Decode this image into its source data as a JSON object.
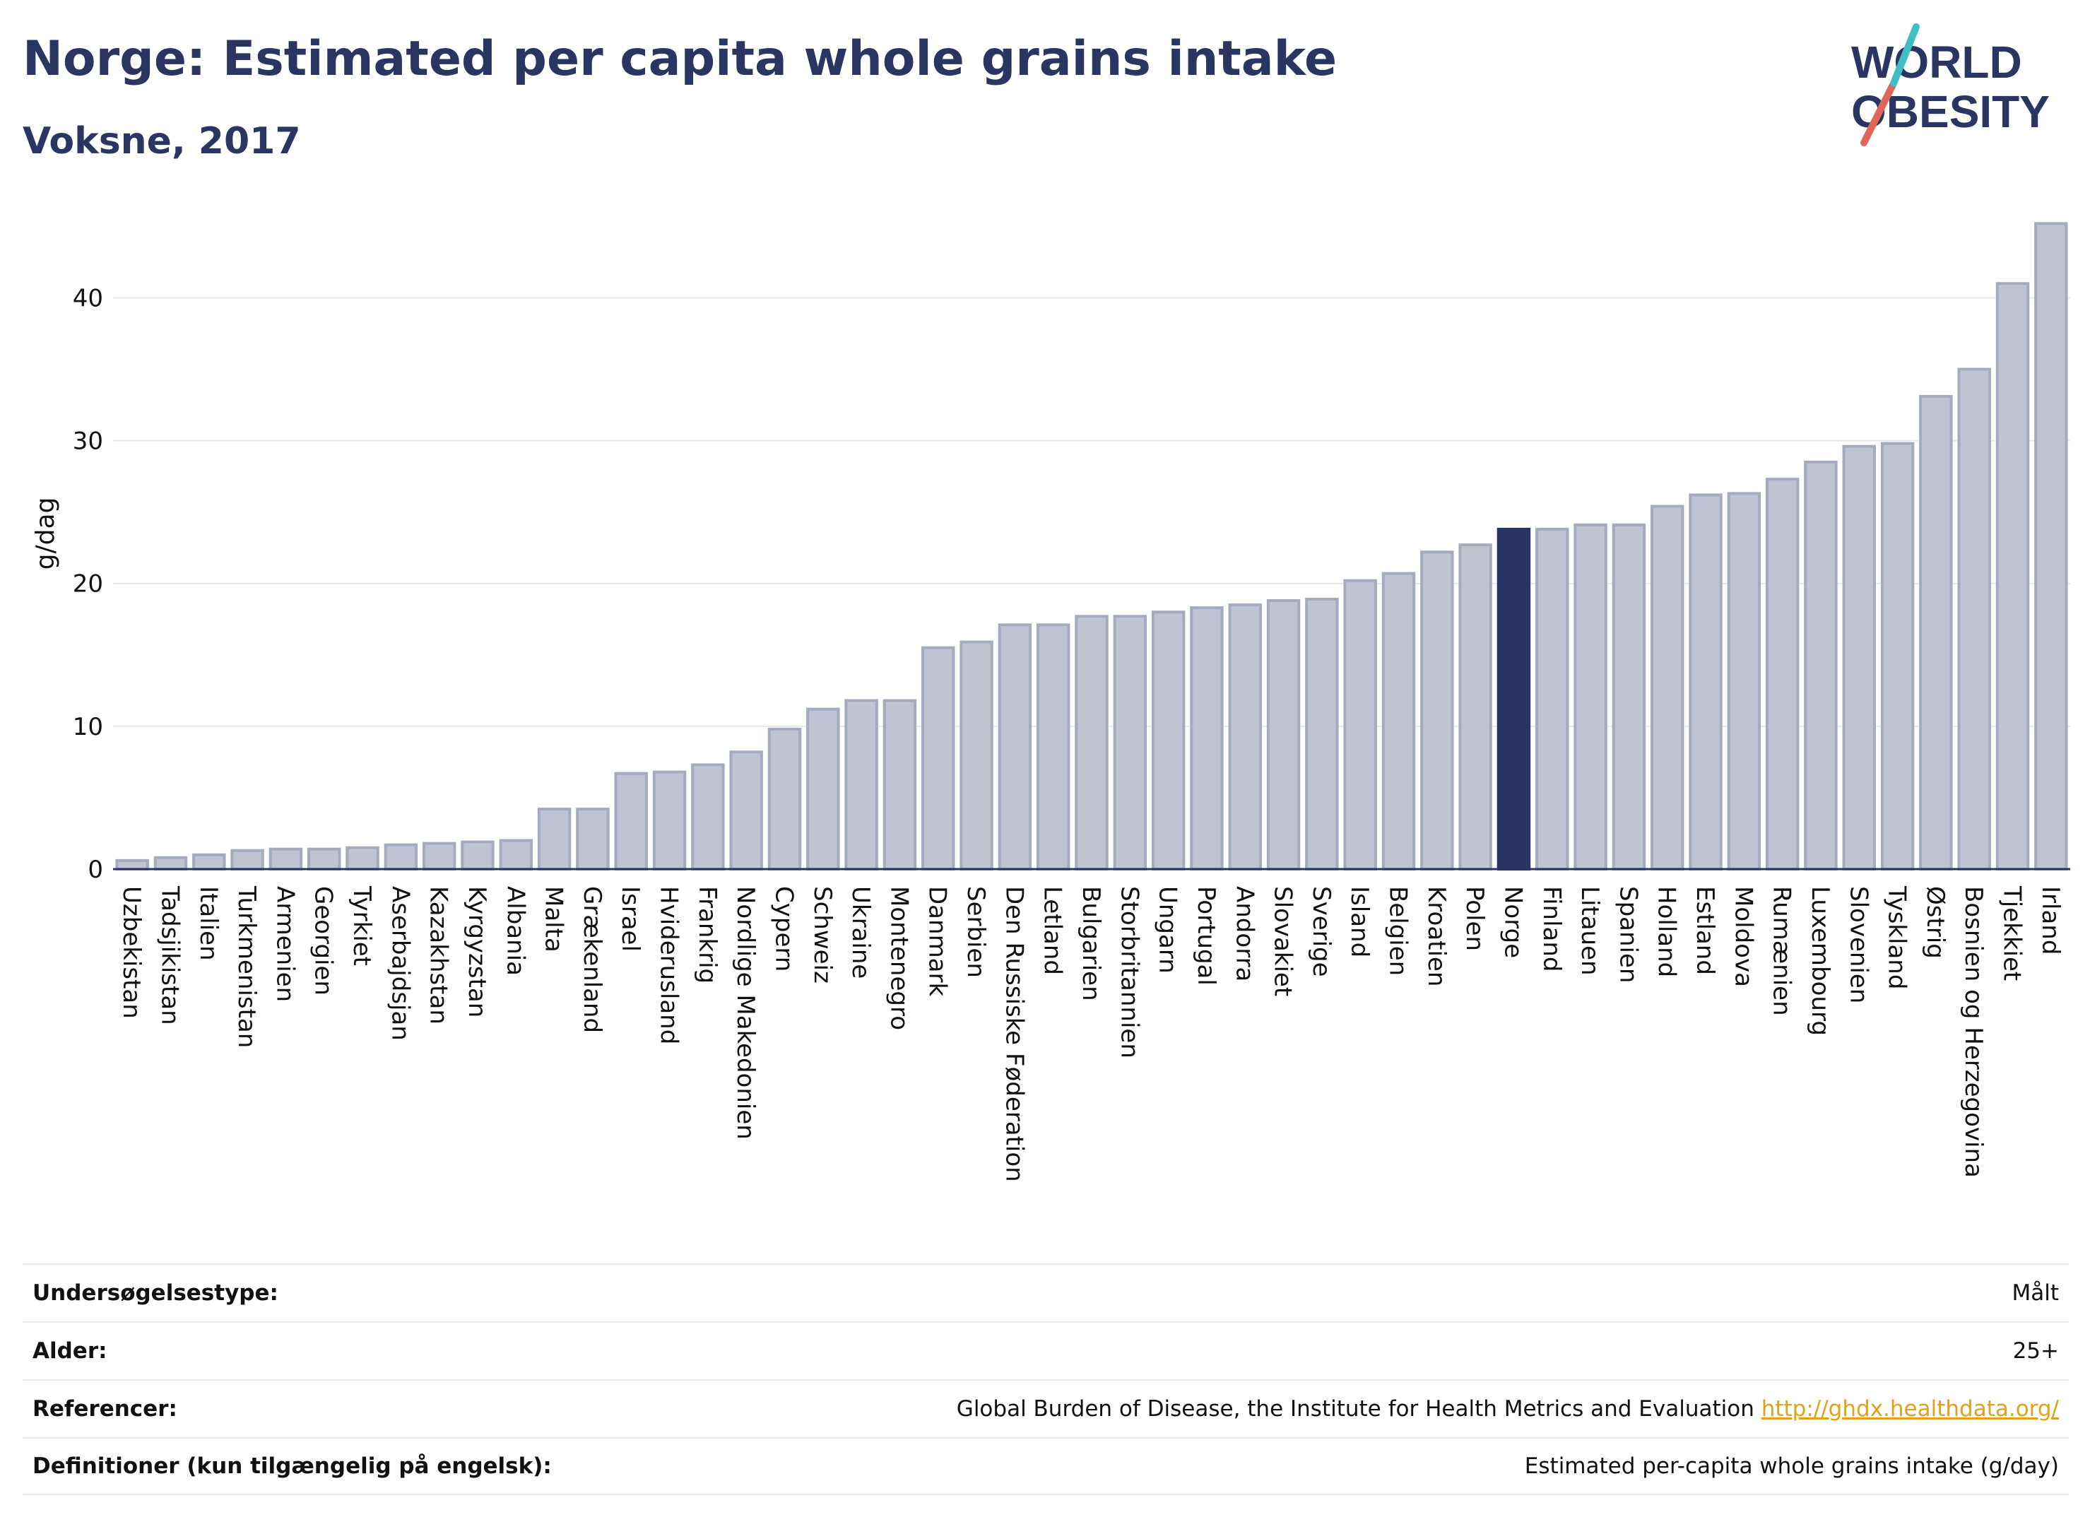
{
  "header": {
    "title": "Norge: Estimated per capita whole grains intake",
    "subtitle": "Voksne, 2017"
  },
  "logo": {
    "line1": "WORLD",
    "line2": "OBESITY",
    "colors": [
      "#2a3562",
      "#e0685a",
      "#3dbfc4"
    ]
  },
  "colors": {
    "bar": "#c0c4d2",
    "bar_border": "#a5abbf",
    "highlight": "#283463",
    "text": "#2a3562",
    "grid": "#e6e9ef",
    "link": "#e0a11b"
  },
  "chart_data": {
    "type": "bar",
    "ylabel": "g/dag",
    "ylim": [
      0,
      47
    ],
    "yticks": [
      0,
      10,
      20,
      30,
      40
    ],
    "grid": true,
    "highlight": "Norge",
    "categories": [
      "Uzbekistan",
      "Tadsjikistan",
      "Italien",
      "Turkmenistan",
      "Armenien",
      "Georgien",
      "Tyrkiet",
      "Aserbajdsjan",
      "Kazakhstan",
      "Kyrgyzstan",
      "Albania",
      "Malta",
      "Grækenland",
      "Israel",
      "Hviderusland",
      "Frankrig",
      "Nordlige Makedonien",
      "Cypern",
      "Schweiz",
      "Ukraine",
      "Montenegro",
      "Danmark",
      "Serbien",
      "Den Russiske Føderation",
      "Letland",
      "Bulgarien",
      "Storbritannien",
      "Ungarn",
      "Portugal",
      "Andorra",
      "Slovakiet",
      "Sverige",
      "Island",
      "Belgien",
      "Kroatien",
      "Polen",
      "Norge",
      "Finland",
      "Litauen",
      "Spanien",
      "Holland",
      "Estland",
      "Moldova",
      "Rumænien",
      "Luxembourg",
      "Slovenien",
      "Tyskland",
      "Østrig",
      "Bosnien og Herzegovina",
      "Tjekkiet",
      "Irland"
    ],
    "values": [
      0.6,
      0.8,
      1.0,
      1.3,
      1.4,
      1.4,
      1.5,
      1.7,
      1.8,
      1.9,
      2.0,
      4.2,
      4.2,
      6.7,
      6.8,
      7.3,
      8.2,
      9.8,
      11.2,
      11.8,
      11.8,
      15.5,
      15.9,
      17.1,
      17.1,
      17.7,
      17.7,
      18.0,
      18.3,
      18.5,
      18.8,
      18.9,
      20.2,
      20.7,
      22.2,
      22.7,
      23.8,
      23.8,
      24.1,
      24.1,
      25.4,
      26.2,
      26.3,
      27.3,
      28.5,
      29.6,
      29.8,
      33.1,
      35.0,
      41.0,
      45.2
    ]
  },
  "meta": {
    "rows": [
      {
        "label": "Undersøgelsestype:",
        "value": "Målt",
        "link": ""
      },
      {
        "label": "Alder:",
        "value": "25+",
        "link": ""
      },
      {
        "label": "Referencer:",
        "value": "Global Burden of Disease, the Institute for Health Metrics and Evaluation",
        "link": "http://ghdx.healthdata.org/"
      },
      {
        "label": "Definitioner (kun tilgængelig på engelsk):",
        "value": "Estimated per-capita whole grains intake (g/day)",
        "link": ""
      }
    ]
  }
}
